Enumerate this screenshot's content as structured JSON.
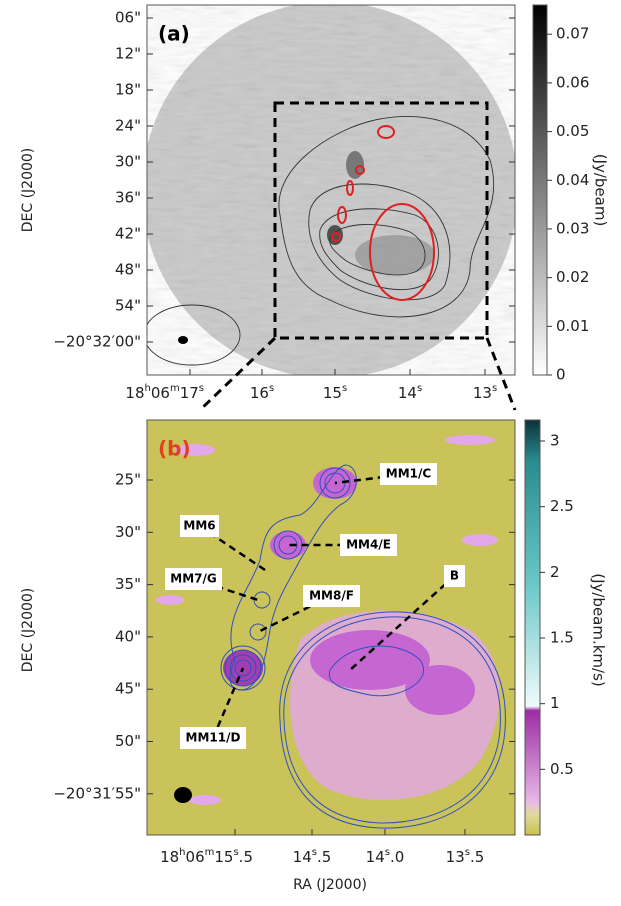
{
  "panel_a": {
    "label": "(a)",
    "y_axis_label": "DEC (J2000)",
    "y_ticks": [
      "06\"",
      "12\"",
      "18\"",
      "24\"",
      "30\"",
      "36\"",
      "42\"",
      "48\"",
      "54\"",
      "−20°32′00\""
    ],
    "x_ticks": [
      "18h06m17s",
      "16s",
      "15s",
      "14s",
      "13s"
    ],
    "colorbar": {
      "label": "(Jy/beam)",
      "lim": [
        0,
        0.076
      ],
      "ticks": [
        0,
        0.01,
        0.02,
        0.03,
        0.04,
        0.05,
        0.06,
        0.07
      ]
    }
  },
  "panel_b": {
    "label": "(b)",
    "y_axis_label": "DEC (J2000)",
    "x_axis_label": "RA (J2000)",
    "y_ticks": [
      "25\"",
      "30\"",
      "35\"",
      "40\"",
      "45\"",
      "50\"",
      "−20°31′55\""
    ],
    "x_ticks": [
      "18h06m15s.5",
      "14s.5",
      "14s.0",
      "13s.5"
    ],
    "sources": [
      "MM1/C",
      "MM4/E",
      "MM6",
      "MM7/G",
      "MM8/F",
      "B",
      "MM11/D"
    ],
    "colorbar": {
      "label": "(Jy/beam.km/s)",
      "lim": [
        0,
        3.16
      ],
      "ticks": [
        0.5,
        1,
        1.5,
        2,
        2.5,
        3
      ]
    }
  }
}
